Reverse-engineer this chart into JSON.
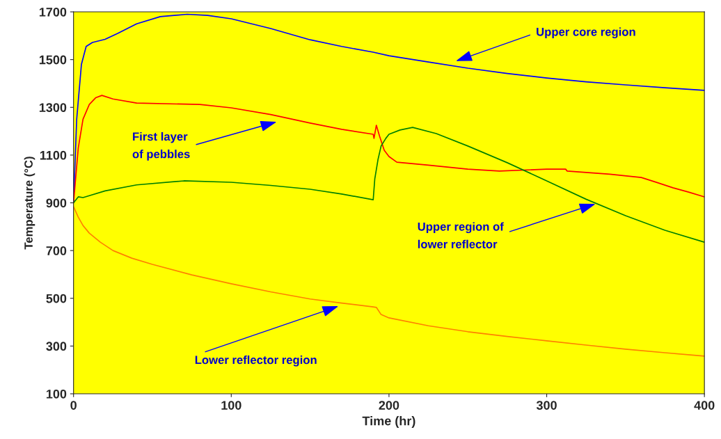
{
  "chart_data": {
    "type": "line",
    "xlabel": "Time (hr)",
    "ylabel": "Temperature (°C)",
    "xlim": [
      0,
      400
    ],
    "ylim": [
      100,
      1700
    ],
    "xticks": [
      0,
      100,
      200,
      300,
      400
    ],
    "yticks": [
      100,
      300,
      500,
      700,
      900,
      1100,
      1300,
      1500,
      1700
    ],
    "grid": false,
    "legend": false,
    "marker": "none",
    "line_style": "solid",
    "series": [
      {
        "color": "#0000ff",
        "x": [
          0,
          2,
          5,
          8,
          12,
          20,
          28,
          40,
          55,
          72,
          85,
          100,
          125,
          150,
          170,
          190,
          200,
          225,
          250,
          275,
          300,
          325,
          350,
          375,
          400
        ],
        "values": [
          904,
          1250,
          1480,
          1555,
          1572,
          1585,
          1610,
          1650,
          1680,
          1690,
          1685,
          1671,
          1630,
          1583,
          1555,
          1531,
          1516,
          1490,
          1464,
          1442,
          1423,
          1407,
          1394,
          1382,
          1371
        ]
      },
      {
        "color": "#ff0000",
        "x": [
          0,
          3,
          6,
          10,
          14,
          18,
          25,
          40,
          80,
          100,
          125,
          150,
          170,
          190,
          190.5,
          192,
          194,
          197,
          200,
          205,
          225,
          250,
          270,
          300,
          312,
          313,
          340,
          360,
          370,
          380,
          390,
          400
        ],
        "values": [
          900,
          1130,
          1250,
          1312,
          1340,
          1350,
          1335,
          1318,
          1312,
          1298,
          1270,
          1234,
          1208,
          1187,
          1170,
          1225,
          1180,
          1120,
          1094,
          1070,
          1058,
          1041,
          1033,
          1041,
          1041,
          1033,
          1020,
          1006,
          985,
          963,
          945,
          925
        ]
      },
      {
        "color": "#008000",
        "x": [
          0,
          3,
          6,
          10,
          20,
          40,
          70,
          100,
          125,
          150,
          170,
          190,
          191,
          193,
          195,
          198,
          200,
          207,
          215,
          230,
          250,
          275,
          300,
          325,
          350,
          375,
          400
        ],
        "values": [
          900,
          925,
          922,
          930,
          950,
          975,
          992,
          986,
          973,
          957,
          937,
          913,
          1000,
          1080,
          1138,
          1170,
          1187,
          1205,
          1216,
          1190,
          1138,
          1068,
          992,
          915,
          846,
          785,
          735
        ]
      },
      {
        "color": "#ff8000",
        "x": [
          0,
          3,
          6,
          10,
          17,
          25,
          37,
          50,
          75,
          100,
          125,
          150,
          170,
          190,
          192,
          195,
          200,
          225,
          250,
          275,
          300,
          325,
          350,
          375,
          400
        ],
        "values": [
          884,
          840,
          805,
          773,
          735,
          700,
          668,
          642,
          598,
          561,
          527,
          497,
          480,
          464,
          462,
          432,
          418,
          385,
          360,
          340,
          322,
          304,
          287,
          272,
          258
        ]
      }
    ],
    "annotations": [
      "Upper core region",
      "First layer\nof pebbles",
      {
        "text": "Upper region of\nlower reflector",
        "x": 331,
        "y": 896
      },
      {
        "text": "Lower reflector region",
        "x": 168,
        "y": 467
      }
    ]
  }
}
